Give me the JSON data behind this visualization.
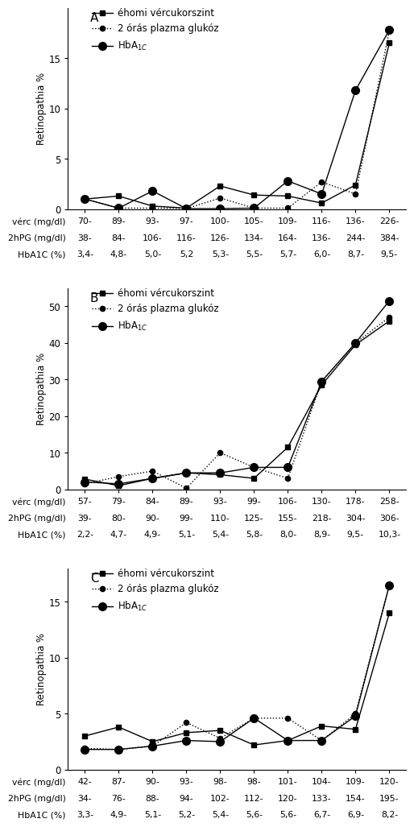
{
  "panels": [
    {
      "label": "A",
      "x": [
        1,
        2,
        3,
        4,
        5,
        6,
        7,
        8,
        9,
        10
      ],
      "y_verc": [
        1.0,
        1.3,
        0.3,
        0.1,
        2.3,
        1.4,
        1.3,
        0.6,
        2.4,
        16.5
      ],
      "y_2hpg": [
        1.0,
        0.1,
        0.1,
        0.05,
        1.1,
        0.1,
        0.1,
        2.7,
        1.5,
        17.7
      ],
      "y_hba1c": [
        1.0,
        0.1,
        1.8,
        0.05,
        0.05,
        0.1,
        2.8,
        1.5,
        11.8,
        17.8
      ],
      "ylim": [
        0,
        20
      ],
      "yticks": [
        0,
        5,
        10,
        15
      ],
      "xlabel_rows": [
        [
          "vérc (mg/dl)",
          "70-",
          "89-",
          "93-",
          "97-",
          "100-",
          "105-",
          "109-",
          "116-",
          "136-",
          "226-"
        ],
        [
          "2hPG (mg/dl)",
          "38-",
          "84-",
          "106-",
          "116-",
          "126-",
          "134-",
          "164-",
          "136-",
          "244-",
          "384-"
        ],
        [
          "HbA1C (%)",
          "3,4-",
          "4,8-",
          "5,0-",
          "5,2",
          "5,3-",
          "5,5-",
          "5,7-",
          "6,0-",
          "8,7-",
          "9,5-"
        ]
      ]
    },
    {
      "label": "B",
      "x": [
        1,
        2,
        3,
        4,
        5,
        6,
        7,
        8,
        9,
        10
      ],
      "y_verc": [
        2.8,
        1.0,
        3.0,
        4.5,
        4.0,
        3.0,
        11.5,
        28.5,
        39.5,
        46.0
      ],
      "y_2hpg": [
        1.5,
        3.5,
        5.0,
        0.3,
        10.0,
        6.0,
        3.0,
        29.5,
        40.0,
        47.0
      ],
      "y_hba1c": [
        2.0,
        1.5,
        3.0,
        4.5,
        4.5,
        6.0,
        6.0,
        29.5,
        40.0,
        51.5
      ],
      "ylim": [
        0,
        55
      ],
      "yticks": [
        0,
        10,
        20,
        30,
        40,
        50
      ],
      "xlabel_rows": [
        [
          "vérc (mg/dl)",
          "57-",
          "79-",
          "84-",
          "89-",
          "93-",
          "99-",
          "106-",
          "130-",
          "178-",
          "258-"
        ],
        [
          "2hPG (mg/dl)",
          "39-",
          "80-",
          "90-",
          "99-",
          "110-",
          "125-",
          "155-",
          "218-",
          "304-",
          "306-"
        ],
        [
          "HbA1C (%)",
          "2,2-",
          "4,7-",
          "4,9-",
          "5,1-",
          "5,4-",
          "5,8-",
          "8,0-",
          "8,9-",
          "9,5-",
          "10,3-"
        ]
      ]
    },
    {
      "label": "C",
      "x": [
        1,
        2,
        3,
        4,
        5,
        6,
        7,
        8,
        9,
        10
      ],
      "y_verc": [
        3.0,
        3.8,
        2.5,
        3.3,
        3.5,
        2.2,
        2.6,
        3.9,
        3.6,
        14.0
      ],
      "y_2hpg": [
        1.9,
        1.8,
        2.1,
        4.2,
        2.8,
        4.6,
        4.6,
        2.6,
        5.0,
        16.5
      ],
      "y_hba1c": [
        1.8,
        1.8,
        2.1,
        2.6,
        2.5,
        4.6,
        2.6,
        2.6,
        4.8,
        16.5
      ],
      "ylim": [
        0,
        18
      ],
      "yticks": [
        0,
        5,
        10,
        15
      ],
      "xlabel_rows": [
        [
          "vérc (mg/dl)",
          "42-",
          "87-",
          "90-",
          "93-",
          "98-",
          "98-",
          "101-",
          "104-",
          "109-",
          "120-"
        ],
        [
          "2hPG (mg/dl)",
          "34-",
          "76-",
          "88-",
          "94-",
          "102-",
          "112-",
          "120-",
          "133-",
          "154-",
          "195-"
        ],
        [
          "HbA1C (%)",
          "3,3-",
          "4,9-",
          "5,1-",
          "5,2-",
          "5,4-",
          "5,6-",
          "5,6-",
          "6,7-",
          "6,9-",
          "8,2-"
        ]
      ]
    }
  ],
  "ylabel": "Retinopathia %",
  "bg_color": "#ffffff",
  "line_color": "#000000",
  "font_size_axis": 8.5,
  "font_size_xlabel": 7.8,
  "font_size_legend": 8.5,
  "font_size_panel_label": 11
}
